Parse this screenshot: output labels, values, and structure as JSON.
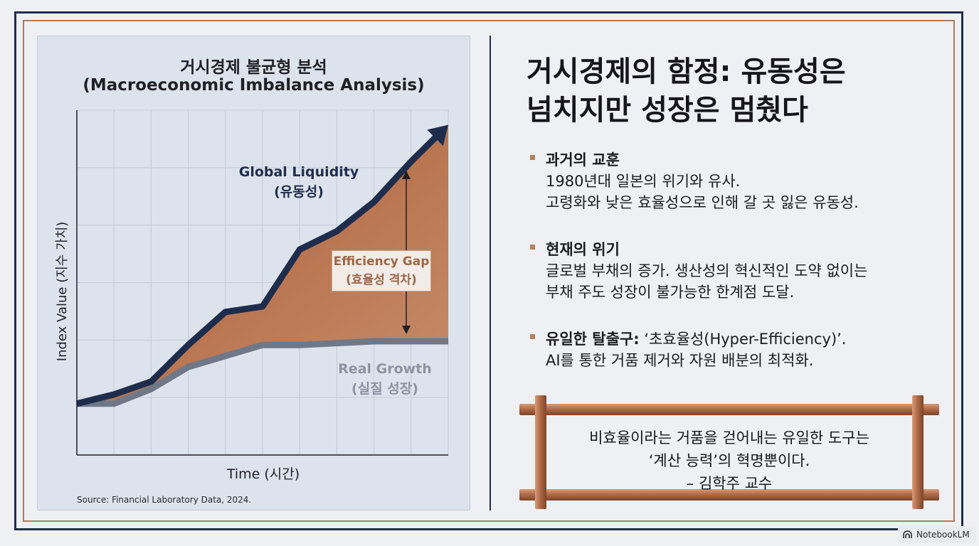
{
  "chart_data": {
    "type": "area",
    "title": "거시경제 불균형 분석",
    "subtitle": "(Macroeconomic Imbalance Analysis)",
    "xlabel": "Time (시간)",
    "ylabel": "Index Value (지수 가치)",
    "source": "Source: Financial Laboratory Data, 2024.",
    "grid": true,
    "x": [
      0,
      1,
      2,
      3,
      4,
      5,
      6,
      7,
      8,
      9,
      10
    ],
    "series": [
      {
        "name": "Global Liquidity",
        "name_ko": "(유동성)",
        "color": "#1f2d4d",
        "values": [
          0,
          0.5,
          1.2,
          3.2,
          5.0,
          5.3,
          8.4,
          9.4,
          11.0,
          13.2,
          15.2
        ]
      },
      {
        "name": "Real Growth",
        "name_ko": "(실질 성장)",
        "color": "#6f7888",
        "values": [
          0,
          0,
          0.8,
          2.0,
          2.6,
          3.2,
          3.2,
          3.3,
          3.4,
          3.4,
          3.4
        ]
      }
    ],
    "gap_label": {
      "name": "Efficiency Gap",
      "name_ko": "(효율성 격차)",
      "color": "#b87352"
    },
    "xlim": [
      0,
      10
    ],
    "ylim": [
      -2.8,
      16
    ]
  },
  "headline": {
    "line1": "거시경제의 함정: 유동성은",
    "line2": "넘치지만 성장은 멈췄다"
  },
  "bullets": [
    {
      "title": "과거의 교훈",
      "title_rest": "",
      "lines": [
        "1980년대 일본의 위기와 유사.",
        "고령화와 낮은 효율성으로 인해 갈 곳 잃은 유동성."
      ]
    },
    {
      "title": "현재의 위기",
      "title_rest": "",
      "lines": [
        "글로벌 부채의 증가. 생산성의 혁신적인 도약 없이는",
        "부채 주도 성장이 불가능한 한계점 도달."
      ]
    },
    {
      "title": "유일한 탈출구:",
      "title_rest": " ‘초효율성(Hyper-Efficiency)’.",
      "lines": [
        "AI를 통한 거품 제거와 자원 배분의 최적화."
      ]
    }
  ],
  "quote": {
    "line1": "비효율이라는 거품을 걷어내는 유일한 도구는",
    "line2": "‘계산 능력’의 혁명뿐이다.",
    "author": "– 김학주 교수"
  },
  "badge": {
    "label": "NotebookLM"
  },
  "colors": {
    "navy": "#1f2d4d",
    "copper": "#b87352",
    "steel": "#6f7888"
  }
}
